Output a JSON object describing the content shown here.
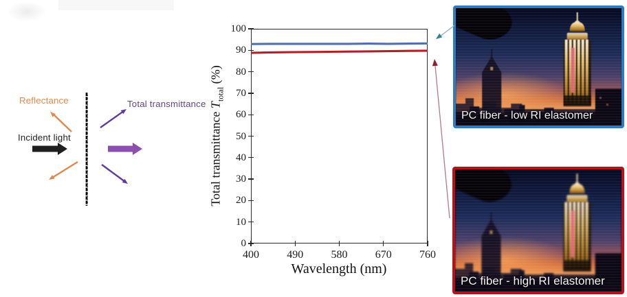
{
  "figure": {
    "background": "#ffffff"
  },
  "diagram": {
    "reflectance_label": "Reflectance",
    "incident_label": "Incident light",
    "transmittance_label": "Total transmittance"
  },
  "chart_data": {
    "type": "line",
    "title": "",
    "xlabel": "Wavelength (nm)",
    "ylabel": "Total transmittance T_total (%)",
    "ylabel_rich": {
      "pre": "Total transmittance ",
      "symbol": "T",
      "subscript": "total",
      "post": " (%)"
    },
    "xlim": [
      400,
      760
    ],
    "ylim": [
      0,
      100
    ],
    "x_ticks": [
      400,
      490,
      580,
      670,
      760
    ],
    "y_ticks": [
      0,
      10,
      20,
      30,
      40,
      50,
      60,
      70,
      80,
      90,
      100
    ],
    "grid": false,
    "frame": "box",
    "legend_position": "none",
    "series": [
      {
        "name": "PC fiber - low RI elastomer",
        "color": "#4f72ae",
        "x": [
          400,
          440,
          480,
          520,
          560,
          600,
          640,
          680,
          720,
          760
        ],
        "values": [
          92.9,
          93.0,
          93.0,
          93.0,
          93.0,
          93.0,
          93.1,
          93.0,
          93.1,
          93.2
        ]
      },
      {
        "name": "PC fiber - high RI elastomer",
        "color": "#b3202a",
        "x": [
          400,
          440,
          480,
          520,
          560,
          600,
          640,
          680,
          720,
          760
        ],
        "values": [
          88.8,
          89.0,
          89.1,
          89.2,
          89.3,
          89.4,
          89.5,
          89.6,
          89.7,
          89.8
        ]
      }
    ]
  },
  "photos": [
    {
      "label": "PC fiber - low RI elastomer",
      "border_color": "#2e7bbf"
    },
    {
      "label": "PC fiber - high RI elastomer",
      "border_color": "#b5121b"
    }
  ],
  "colors": {
    "reflectance_orange": "#dd8a52",
    "incident_black": "#1f1f1f",
    "transmittance_text": "#5b4a8c",
    "transmittance_thick_arrow": "#8c4fae",
    "transmittance_thin_arrow": "#5e3d99",
    "axis": "#2a2a2a",
    "teal_connector_head": "#36808f",
    "teal_connector_line": "#8fb0bd",
    "red_connector_head": "#8e1f33",
    "red_connector_line": "#b4788a"
  }
}
